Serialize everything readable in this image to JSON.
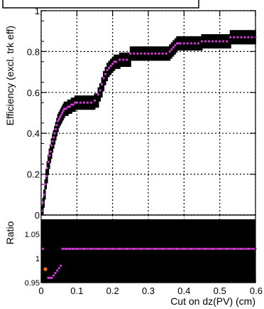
{
  "chart_data": [
    {
      "panel": "efficiency",
      "type": "scatter",
      "ylabel": "Efficiency (excl. trk eff)",
      "xlim": [
        0,
        0.6
      ],
      "ylim": [
        0,
        1.0
      ],
      "grid": true,
      "yticks": [
        "0",
        "0.2",
        "0.4",
        "0.6",
        "0.8",
        "1"
      ],
      "marker_color": "#d63ad6",
      "band_color": "#000000",
      "series": [
        {
          "x": [
            0.002,
            0.005,
            0.008,
            0.011,
            0.014,
            0.017,
            0.02,
            0.023,
            0.026,
            0.029,
            0.032,
            0.035,
            0.038,
            0.041,
            0.044,
            0.047,
            0.05,
            0.053,
            0.056,
            0.059,
            0.062,
            0.065,
            0.07,
            0.075,
            0.08,
            0.085,
            0.09,
            0.095,
            0.1,
            0.11,
            0.12,
            0.13,
            0.14,
            0.15,
            0.16,
            0.165,
            0.17,
            0.175,
            0.18,
            0.185,
            0.19,
            0.195,
            0.2,
            0.205,
            0.21,
            0.22,
            0.23,
            0.24,
            0.25,
            0.26,
            0.27,
            0.28,
            0.29,
            0.3,
            0.31,
            0.32,
            0.33,
            0.34,
            0.35,
            0.36,
            0.365,
            0.37,
            0.375,
            0.38,
            0.385,
            0.39,
            0.4,
            0.41,
            0.42,
            0.43,
            0.44,
            0.45,
            0.46,
            0.47,
            0.48,
            0.49,
            0.5,
            0.51,
            0.52,
            0.53,
            0.54,
            0.55,
            0.56,
            0.57,
            0.58,
            0.59,
            0.6
          ],
          "y": [
            0.02,
            0.06,
            0.1,
            0.15,
            0.19,
            0.23,
            0.26,
            0.29,
            0.31,
            0.34,
            0.36,
            0.38,
            0.4,
            0.42,
            0.44,
            0.46,
            0.47,
            0.48,
            0.49,
            0.5,
            0.51,
            0.52,
            0.52,
            0.53,
            0.53,
            0.54,
            0.54,
            0.55,
            0.55,
            0.55,
            0.55,
            0.55,
            0.55,
            0.56,
            0.59,
            0.61,
            0.64,
            0.67,
            0.69,
            0.71,
            0.72,
            0.73,
            0.74,
            0.75,
            0.75,
            0.76,
            0.76,
            0.76,
            0.79,
            0.79,
            0.79,
            0.79,
            0.79,
            0.79,
            0.79,
            0.79,
            0.79,
            0.79,
            0.79,
            0.8,
            0.81,
            0.82,
            0.83,
            0.84,
            0.84,
            0.84,
            0.84,
            0.84,
            0.84,
            0.84,
            0.84,
            0.85,
            0.85,
            0.85,
            0.85,
            0.85,
            0.85,
            0.85,
            0.85,
            0.87,
            0.87,
            0.87,
            0.87,
            0.87,
            0.87,
            0.87,
            0.87
          ],
          "band_halfwidth": 0.035
        }
      ]
    },
    {
      "panel": "ratio",
      "type": "scatter",
      "ylabel": "Ratio",
      "xlabel": "Cut on dz(PV) (cm)",
      "xlim": [
        0,
        0.6
      ],
      "ylim": [
        0.95,
        1.09
      ],
      "grid": true,
      "xticks": [
        "0",
        "0.1",
        "0.2",
        "0.3",
        "0.4",
        "0.5",
        "0.6"
      ],
      "yticks": [
        "0.95",
        "1",
        "1.05"
      ],
      "marker_color": "#d63ad6",
      "outlier_color": "#ff6a1a",
      "series": [
        {
          "x": [
            0.005,
            0.02,
            0.025,
            0.03,
            0.035,
            0.04,
            0.045,
            0.05,
            0.055,
            0.06,
            0.07,
            0.08,
            0.09,
            0.1,
            0.12,
            0.14,
            0.16,
            0.18,
            0.2,
            0.22,
            0.24,
            0.26,
            0.28,
            0.3,
            0.32,
            0.34,
            0.36,
            0.38,
            0.4,
            0.42,
            0.44,
            0.46,
            0.48,
            0.5,
            0.52,
            0.54,
            0.56,
            0.58,
            0.6
          ],
          "y": [
            1.02,
            0.96,
            0.96,
            0.96,
            0.965,
            0.97,
            0.975,
            0.98,
            0.985,
            1.02,
            1.02,
            1.02,
            1.02,
            1.02,
            1.02,
            1.02,
            1.02,
            1.02,
            1.02,
            1.02,
            1.02,
            1.02,
            1.02,
            1.02,
            1.02,
            1.02,
            1.02,
            1.02,
            1.02,
            1.02,
            1.02,
            1.02,
            1.02,
            1.02,
            1.02,
            1.02,
            1.02,
            1.02,
            1.02
          ]
        },
        {
          "name": "",
          "x": [
            0.012
          ],
          "y": [
            0.978
          ]
        }
      ]
    }
  ]
}
